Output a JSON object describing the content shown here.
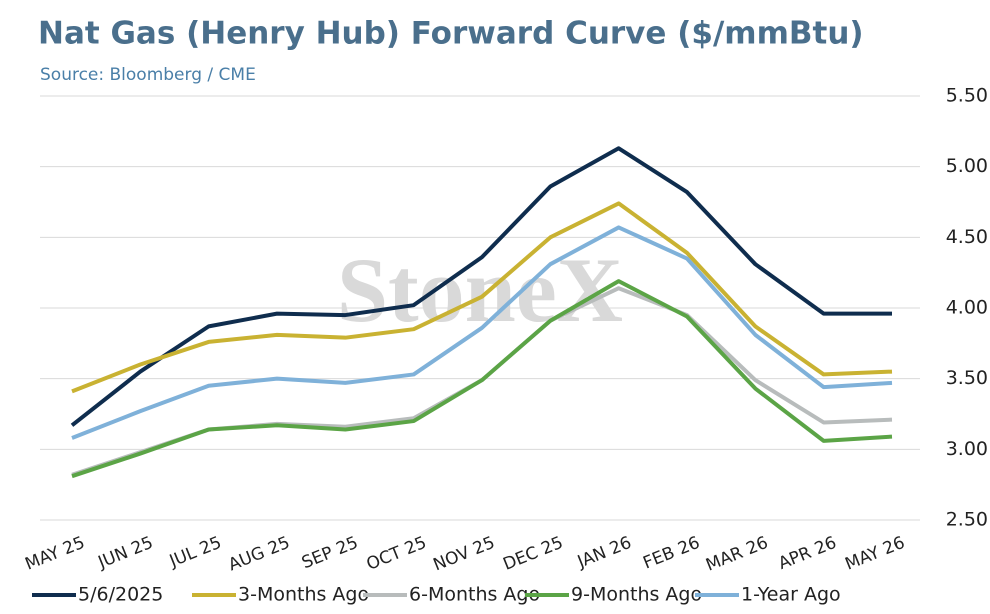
{
  "chart_data": {
    "type": "line",
    "title": "Nat Gas (Henry Hub) Forward Curve ($/mmBtu)",
    "subtitle": "Source: Bloomberg / CME",
    "watermark": "StoneX",
    "categories": [
      "MAY 25",
      "JUN 25",
      "JUL 25",
      "AUG 25",
      "SEP 25",
      "OCT 25",
      "NOV 25",
      "DEC 25",
      "JAN 26",
      "FEB 26",
      "MAR 26",
      "APR 26",
      "MAY 26"
    ],
    "series": [
      {
        "name": "5/6/2025",
        "color": "#0f2d4e",
        "values": [
          3.17,
          3.55,
          3.87,
          3.96,
          3.95,
          4.02,
          4.36,
          4.86,
          5.13,
          4.82,
          4.31,
          3.96,
          3.96
        ]
      },
      {
        "name": "3-Months Ago",
        "color": "#c9b232",
        "values": [
          3.41,
          3.6,
          3.76,
          3.81,
          3.79,
          3.85,
          4.08,
          4.5,
          4.74,
          4.39,
          3.87,
          3.53,
          3.55
        ]
      },
      {
        "name": "6-Months Ago",
        "color": "#b8bcbc",
        "values": [
          2.82,
          2.98,
          3.14,
          3.18,
          3.16,
          3.22,
          3.49,
          3.91,
          4.14,
          3.95,
          3.49,
          3.19,
          3.21
        ]
      },
      {
        "name": "9-Months Ago",
        "color": "#5ba446",
        "values": [
          2.81,
          2.97,
          3.14,
          3.17,
          3.14,
          3.2,
          3.49,
          3.91,
          4.19,
          3.94,
          3.43,
          3.06,
          3.09
        ]
      },
      {
        "name": "1-Year Ago",
        "color": "#7fb1d9",
        "values": [
          3.08,
          3.27,
          3.45,
          3.5,
          3.47,
          3.53,
          3.86,
          4.31,
          4.57,
          4.35,
          3.81,
          3.44,
          3.47
        ]
      }
    ],
    "ylim": [
      2.5,
      5.5
    ],
    "yticks": [
      {
        "value": 2.5,
        "label": "2.50"
      },
      {
        "value": 3,
        "label": "3.00"
      },
      {
        "value": 3.5,
        "label": "3.50"
      },
      {
        "value": 4,
        "label": "4.00"
      },
      {
        "value": 4.5,
        "label": "4.50"
      },
      {
        "value": 5,
        "label": "5.00"
      },
      {
        "value": 5.5,
        "label": "5.50"
      }
    ],
    "grid": true
  }
}
